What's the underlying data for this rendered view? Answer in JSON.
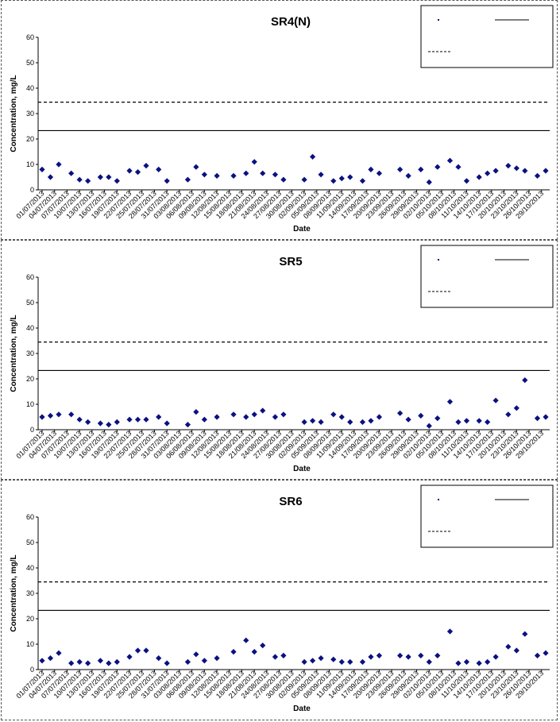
{
  "chart_data": [
    {
      "type": "scatter",
      "title": "SR4(N)",
      "xlabel": "Date",
      "ylabel": "Concentration, mg/L",
      "ylim": [
        0,
        60
      ],
      "yticks": [
        0,
        10,
        20,
        30,
        40,
        50,
        60
      ],
      "xlim": [
        "01/07/2013",
        "30/10/2013"
      ],
      "xtick_labels": [
        "01/07/2013",
        "04/07/2013",
        "07/07/2013",
        "10/07/2013",
        "13/07/2013",
        "16/07/2013",
        "19/07/2013",
        "22/07/2013",
        "25/07/2013",
        "28/07/2013",
        "31/07/2013",
        "03/08/2013",
        "06/08/2013",
        "09/08/2013",
        "12/08/2013",
        "15/08/2013",
        "18/08/2013",
        "21/08/2013",
        "24/08/2013",
        "27/08/2013",
        "30/08/2013",
        "02/09/2013",
        "05/09/2013",
        "08/09/2013",
        "11/09/2013",
        "14/09/2013",
        "17/09/2013",
        "20/09/2013",
        "23/09/2013",
        "26/09/2013",
        "29/09/2013",
        "02/10/2013",
        "05/10/2013",
        "08/10/2013",
        "11/10/2013",
        "14/10/2013",
        "17/10/2013",
        "20/10/2013",
        "23/10/2013",
        "26/10/2013",
        "29/10/2013"
      ],
      "grid": false,
      "legend_position": "top-right",
      "series": [
        {
          "marker": "diamond",
          "color": "#0a1180",
          "points": [
            {
              "x": "01/07/2013",
              "y": 8.0
            },
            {
              "x": "03/07/2013",
              "y": 5.0
            },
            {
              "x": "05/07/2013",
              "y": 10.0
            },
            {
              "x": "08/07/2013",
              "y": 6.5
            },
            {
              "x": "10/07/2013",
              "y": 4.0
            },
            {
              "x": "12/07/2013",
              "y": 3.5
            },
            {
              "x": "15/07/2013",
              "y": 5.0
            },
            {
              "x": "17/07/2013",
              "y": 5.0
            },
            {
              "x": "19/07/2013",
              "y": 3.5
            },
            {
              "x": "22/07/2013",
              "y": 7.5
            },
            {
              "x": "24/07/2013",
              "y": 7.0
            },
            {
              "x": "26/07/2013",
              "y": 9.5
            },
            {
              "x": "29/07/2013",
              "y": 8.0
            },
            {
              "x": "31/07/2013",
              "y": 3.5
            },
            {
              "x": "05/08/2013",
              "y": 4.0
            },
            {
              "x": "07/08/2013",
              "y": 9.0
            },
            {
              "x": "09/08/2013",
              "y": 6.0
            },
            {
              "x": "12/08/2013",
              "y": 5.5
            },
            {
              "x": "16/08/2013",
              "y": 5.5
            },
            {
              "x": "19/08/2013",
              "y": 6.5
            },
            {
              "x": "21/08/2013",
              "y": 11.0
            },
            {
              "x": "23/08/2013",
              "y": 6.5
            },
            {
              "x": "26/08/2013",
              "y": 6.0
            },
            {
              "x": "28/08/2013",
              "y": 4.0
            },
            {
              "x": "02/09/2013",
              "y": 4.0
            },
            {
              "x": "04/09/2013",
              "y": 13.0
            },
            {
              "x": "06/09/2013",
              "y": 6.0
            },
            {
              "x": "09/09/2013",
              "y": 3.5
            },
            {
              "x": "11/09/2013",
              "y": 4.5
            },
            {
              "x": "13/09/2013",
              "y": 5.0
            },
            {
              "x": "16/09/2013",
              "y": 3.5
            },
            {
              "x": "18/09/2013",
              "y": 8.0
            },
            {
              "x": "20/09/2013",
              "y": 6.5
            },
            {
              "x": "25/09/2013",
              "y": 8.0
            },
            {
              "x": "27/09/2013",
              "y": 5.5
            },
            {
              "x": "30/09/2013",
              "y": 8.0
            },
            {
              "x": "02/10/2013",
              "y": 3.0
            },
            {
              "x": "04/10/2013",
              "y": 9.0
            },
            {
              "x": "07/10/2013",
              "y": 11.5
            },
            {
              "x": "09/10/2013",
              "y": 9.0
            },
            {
              "x": "11/10/2013",
              "y": 3.5
            },
            {
              "x": "14/10/2013",
              "y": 5.0
            },
            {
              "x": "16/10/2013",
              "y": 6.5
            },
            {
              "x": "18/10/2013",
              "y": 7.5
            },
            {
              "x": "21/10/2013",
              "y": 9.5
            },
            {
              "x": "23/10/2013",
              "y": 8.5
            },
            {
              "x": "25/10/2013",
              "y": 7.5
            },
            {
              "x": "28/10/2013",
              "y": 5.5
            },
            {
              "x": "30/10/2013",
              "y": 7.5
            }
          ]
        }
      ],
      "reference_lines": [
        {
          "style": "solid",
          "value": 23.3,
          "color": "#000000"
        },
        {
          "style": "dashed",
          "value": 34.5,
          "color": "#000000"
        }
      ]
    },
    {
      "type": "scatter",
      "title": "SR5",
      "xlabel": "Date",
      "ylabel": "Concentration, mg/L",
      "ylim": [
        0,
        60
      ],
      "yticks": [
        0,
        10,
        20,
        30,
        40,
        50,
        60
      ],
      "xlim": [
        "01/07/2013",
        "30/10/2013"
      ],
      "xtick_labels": [
        "01/07/2013",
        "04/07/2013",
        "07/07/2013",
        "10/07/2013",
        "13/07/2013",
        "16/07/2013",
        "19/07/2013",
        "22/07/2013",
        "25/07/2013",
        "28/07/2013",
        "31/07/2013",
        "03/08/2013",
        "06/08/2013",
        "09/08/2013",
        "12/08/2013",
        "15/08/2013",
        "18/08/2013",
        "21/08/2013",
        "24/08/2013",
        "27/08/2013",
        "30/08/2013",
        "02/09/2013",
        "05/09/2013",
        "08/09/2013",
        "11/09/2013",
        "14/09/2013",
        "17/09/2013",
        "20/09/2013",
        "23/09/2013",
        "26/09/2013",
        "29/09/2013",
        "02/10/2013",
        "05/10/2013",
        "08/10/2013",
        "11/10/2013",
        "14/10/2013",
        "17/10/2013",
        "20/10/2013",
        "23/10/2013",
        "26/10/2013",
        "29/10/2013"
      ],
      "grid": false,
      "legend_position": "top-right",
      "series": [
        {
          "marker": "diamond",
          "color": "#0a1180",
          "points": [
            {
              "x": "01/07/2013",
              "y": 5.0
            },
            {
              "x": "03/07/2013",
              "y": 5.5
            },
            {
              "x": "05/07/2013",
              "y": 6.0
            },
            {
              "x": "08/07/2013",
              "y": 6.0
            },
            {
              "x": "10/07/2013",
              "y": 4.0
            },
            {
              "x": "12/07/2013",
              "y": 3.0
            },
            {
              "x": "15/07/2013",
              "y": 2.5
            },
            {
              "x": "17/07/2013",
              "y": 2.0
            },
            {
              "x": "19/07/2013",
              "y": 3.0
            },
            {
              "x": "22/07/2013",
              "y": 4.0
            },
            {
              "x": "24/07/2013",
              "y": 4.0
            },
            {
              "x": "26/07/2013",
              "y": 4.0
            },
            {
              "x": "29/07/2013",
              "y": 5.0
            },
            {
              "x": "31/07/2013",
              "y": 2.5
            },
            {
              "x": "05/08/2013",
              "y": 2.0
            },
            {
              "x": "07/08/2013",
              "y": 7.0
            },
            {
              "x": "09/08/2013",
              "y": 4.0
            },
            {
              "x": "12/08/2013",
              "y": 5.0
            },
            {
              "x": "16/08/2013",
              "y": 6.0
            },
            {
              "x": "19/08/2013",
              "y": 5.0
            },
            {
              "x": "21/08/2013",
              "y": 6.0
            },
            {
              "x": "23/08/2013",
              "y": 7.5
            },
            {
              "x": "26/08/2013",
              "y": 5.0
            },
            {
              "x": "28/08/2013",
              "y": 6.0
            },
            {
              "x": "02/09/2013",
              "y": 3.0
            },
            {
              "x": "04/09/2013",
              "y": 3.5
            },
            {
              "x": "06/09/2013",
              "y": 3.0
            },
            {
              "x": "09/09/2013",
              "y": 6.0
            },
            {
              "x": "11/09/2013",
              "y": 5.0
            },
            {
              "x": "13/09/2013",
              "y": 3.0
            },
            {
              "x": "16/09/2013",
              "y": 3.0
            },
            {
              "x": "18/09/2013",
              "y": 3.5
            },
            {
              "x": "20/09/2013",
              "y": 5.0
            },
            {
              "x": "25/09/2013",
              "y": 6.5
            },
            {
              "x": "27/09/2013",
              "y": 4.0
            },
            {
              "x": "30/09/2013",
              "y": 5.5
            },
            {
              "x": "02/10/2013",
              "y": 1.5
            },
            {
              "x": "04/10/2013",
              "y": 4.5
            },
            {
              "x": "07/10/2013",
              "y": 11.0
            },
            {
              "x": "09/10/2013",
              "y": 3.0
            },
            {
              "x": "11/10/2013",
              "y": 3.5
            },
            {
              "x": "14/10/2013",
              "y": 3.5
            },
            {
              "x": "16/10/2013",
              "y": 3.0
            },
            {
              "x": "18/10/2013",
              "y": 11.5
            },
            {
              "x": "21/10/2013",
              "y": 6.0
            },
            {
              "x": "23/10/2013",
              "y": 8.5
            },
            {
              "x": "25/10/2013",
              "y": 19.5
            },
            {
              "x": "28/10/2013",
              "y": 4.5
            },
            {
              "x": "30/10/2013",
              "y": 5.0
            }
          ]
        }
      ],
      "reference_lines": [
        {
          "style": "solid",
          "value": 23.3,
          "color": "#000000"
        },
        {
          "style": "dashed",
          "value": 34.5,
          "color": "#000000"
        }
      ]
    },
    {
      "type": "scatter",
      "title": "SR6",
      "xlabel": "Date",
      "ylabel": "Concentration, mg/L",
      "ylim": [
        0,
        60
      ],
      "yticks": [
        0,
        10,
        20,
        30,
        40,
        50,
        60
      ],
      "xlim": [
        "01/07/2013",
        "30/10/2013"
      ],
      "xtick_labels": [
        "01/07/2013",
        "04/07/2013",
        "07/07/2013",
        "10/07/2013",
        "13/07/2013",
        "16/07/2013",
        "19/07/2013",
        "22/07/2013",
        "25/07/2013",
        "28/07/2013",
        "31/07/2013",
        "03/08/2013",
        "06/08/2013",
        "09/08/2013",
        "12/08/2013",
        "15/08/2013",
        "18/08/2013",
        "21/08/2013",
        "24/08/2013",
        "27/08/2013",
        "30/08/2013",
        "02/09/2013",
        "05/09/2013",
        "08/09/2013",
        "11/09/2013",
        "14/09/2013",
        "17/09/2013",
        "20/09/2013",
        "23/09/2013",
        "26/09/2013",
        "29/09/2013",
        "02/10/2013",
        "05/10/2013",
        "08/10/2013",
        "11/10/2013",
        "14/10/2013",
        "17/10/2013",
        "20/10/2013",
        "23/10/2013",
        "26/10/2013",
        "29/10/2013"
      ],
      "grid": false,
      "legend_position": "top-right",
      "series": [
        {
          "marker": "diamond",
          "color": "#0a1180",
          "points": [
            {
              "x": "01/07/2013",
              "y": 3.5
            },
            {
              "x": "03/07/2013",
              "y": 4.5
            },
            {
              "x": "05/07/2013",
              "y": 6.5
            },
            {
              "x": "08/07/2013",
              "y": 2.5
            },
            {
              "x": "10/07/2013",
              "y": 3.0
            },
            {
              "x": "12/07/2013",
              "y": 2.5
            },
            {
              "x": "15/07/2013",
              "y": 3.5
            },
            {
              "x": "17/07/2013",
              "y": 2.5
            },
            {
              "x": "19/07/2013",
              "y": 3.0
            },
            {
              "x": "22/07/2013",
              "y": 5.0
            },
            {
              "x": "24/07/2013",
              "y": 7.5
            },
            {
              "x": "26/07/2013",
              "y": 7.5
            },
            {
              "x": "29/07/2013",
              "y": 4.5
            },
            {
              "x": "31/07/2013",
              "y": 2.5
            },
            {
              "x": "05/08/2013",
              "y": 3.0
            },
            {
              "x": "07/08/2013",
              "y": 6.0
            },
            {
              "x": "09/08/2013",
              "y": 3.5
            },
            {
              "x": "12/08/2013",
              "y": 4.5
            },
            {
              "x": "16/08/2013",
              "y": 7.0
            },
            {
              "x": "19/08/2013",
              "y": 11.5
            },
            {
              "x": "21/08/2013",
              "y": 7.0
            },
            {
              "x": "23/08/2013",
              "y": 9.5
            },
            {
              "x": "26/08/2013",
              "y": 5.0
            },
            {
              "x": "28/08/2013",
              "y": 5.5
            },
            {
              "x": "02/09/2013",
              "y": 3.0
            },
            {
              "x": "04/09/2013",
              "y": 3.5
            },
            {
              "x": "06/09/2013",
              "y": 4.5
            },
            {
              "x": "09/09/2013",
              "y": 4.0
            },
            {
              "x": "11/09/2013",
              "y": 3.0
            },
            {
              "x": "13/09/2013",
              "y": 3.0
            },
            {
              "x": "16/09/2013",
              "y": 3.0
            },
            {
              "x": "18/09/2013",
              "y": 5.0
            },
            {
              "x": "20/09/2013",
              "y": 5.5
            },
            {
              "x": "25/09/2013",
              "y": 5.5
            },
            {
              "x": "27/09/2013",
              "y": 5.0
            },
            {
              "x": "30/09/2013",
              "y": 5.5
            },
            {
              "x": "02/10/2013",
              "y": 3.0
            },
            {
              "x": "04/10/2013",
              "y": 5.5
            },
            {
              "x": "07/10/2013",
              "y": 15.0
            },
            {
              "x": "09/10/2013",
              "y": 2.5
            },
            {
              "x": "11/10/2013",
              "y": 3.0
            },
            {
              "x": "14/10/2013",
              "y": 2.5
            },
            {
              "x": "16/10/2013",
              "y": 3.0
            },
            {
              "x": "18/10/2013",
              "y": 5.0
            },
            {
              "x": "21/10/2013",
              "y": 9.0
            },
            {
              "x": "23/10/2013",
              "y": 7.5
            },
            {
              "x": "25/10/2013",
              "y": 14.0
            },
            {
              "x": "28/10/2013",
              "y": 5.5
            },
            {
              "x": "30/10/2013",
              "y": 6.5
            }
          ]
        }
      ],
      "reference_lines": [
        {
          "style": "solid",
          "value": 23.3,
          "color": "#000000"
        },
        {
          "style": "dashed",
          "value": 34.5,
          "color": "#000000"
        }
      ]
    }
  ]
}
